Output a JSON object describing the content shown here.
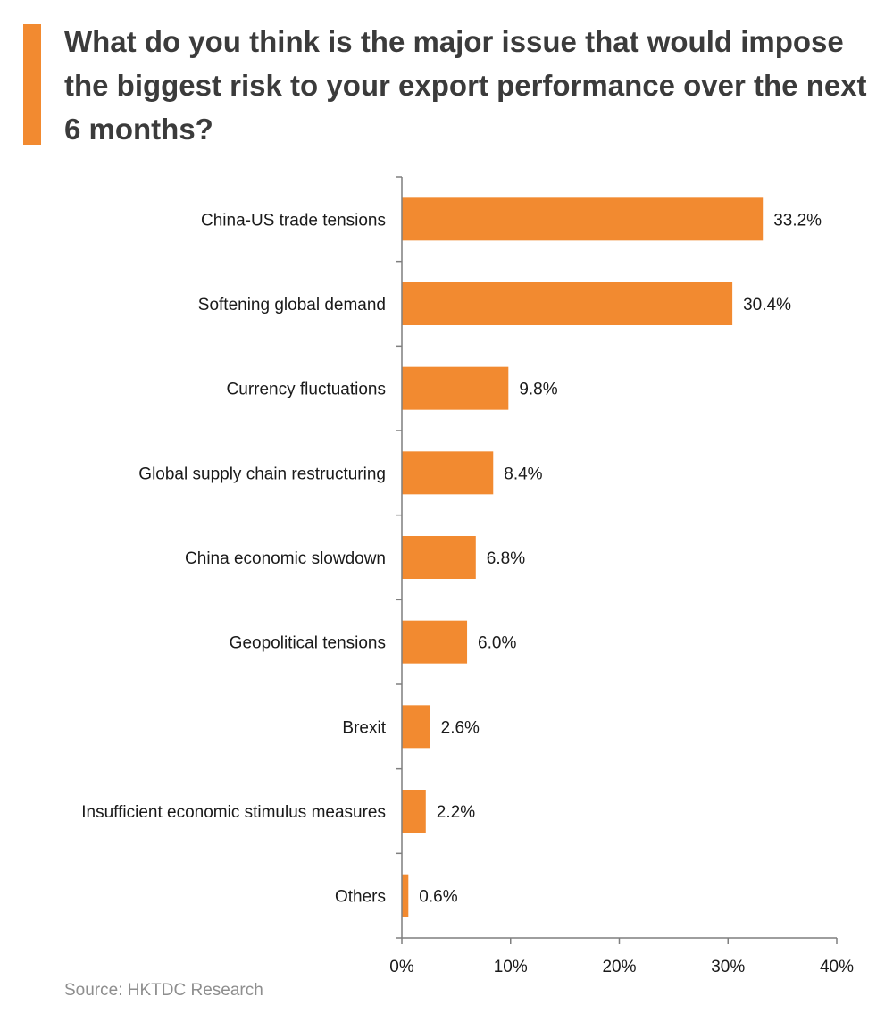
{
  "colors": {
    "accent": "#f28a30",
    "bar": "#f28a30",
    "axis": "#7f7f7f",
    "text": "#1a1a1a",
    "title": "#3b3b3b",
    "source": "#8e8e8e"
  },
  "header": {
    "title": "What do you think is the major issue that would impose the biggest risk to your export performance over the next 6 months?"
  },
  "footer": {
    "source": "Source: HKTDC Research"
  },
  "chart_data": {
    "type": "bar",
    "orientation": "horizontal",
    "title": "What do you think is the major issue that would impose the biggest risk to your export performance over the next 6 months?",
    "xlabel": "",
    "ylabel": "",
    "xlim": [
      0,
      40
    ],
    "x_ticks": [
      "0%",
      "10%",
      "20%",
      "30%",
      "40%"
    ],
    "grid": false,
    "legend": "none",
    "categories": [
      "China-US trade tensions",
      "Softening global demand",
      "Currency fluctuations",
      "Global supply chain restructuring",
      "China economic slowdown",
      "Geopolitical tensions",
      "Brexit",
      "Insufficient economic stimulus measures",
      "Others"
    ],
    "values": [
      33.2,
      30.4,
      9.8,
      8.4,
      6.8,
      6.0,
      2.6,
      2.2,
      0.6
    ],
    "data_labels": [
      "33.2%",
      "30.4%",
      "9.8%",
      "8.4%",
      "6.8%",
      "6.0%",
      "2.6%",
      "2.2%",
      "0.6%"
    ]
  }
}
